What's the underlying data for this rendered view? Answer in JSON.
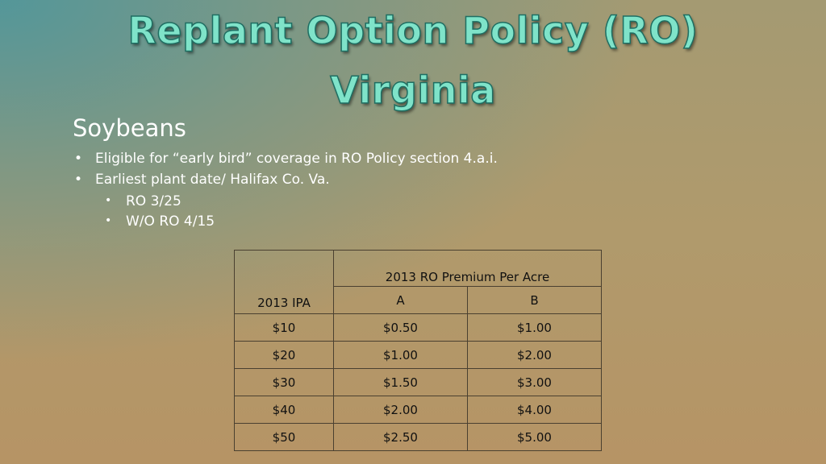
{
  "title": {
    "line1": "Replant Option Policy (RO)",
    "line2": "Virginia"
  },
  "content": {
    "heading": "Soybeans",
    "bullets": [
      "Eligible for “early bird” coverage in RO Policy section 4.a.i.",
      "Earliest plant date/ Halifax Co. Va."
    ],
    "sub_bullets": [
      "RO 3/25",
      "W/O RO 4/15"
    ],
    "bullet_char": "•"
  },
  "table": {
    "ipa_header": "2013 IPA",
    "premium_header": "2013 RO Premium Per Acre",
    "col_a": "A",
    "col_b": "B",
    "rows": [
      {
        "ipa": "$10",
        "a": "$0.50",
        "b": "$1.00"
      },
      {
        "ipa": "$20",
        "a": "$1.00",
        "b": "$2.00"
      },
      {
        "ipa": "$30",
        "a": "$1.50",
        "b": "$3.00"
      },
      {
        "ipa": "$40",
        "a": "$2.00",
        "b": "$4.00"
      },
      {
        "ipa": "$50",
        "a": "$2.50",
        "b": "$5.00"
      }
    ]
  }
}
